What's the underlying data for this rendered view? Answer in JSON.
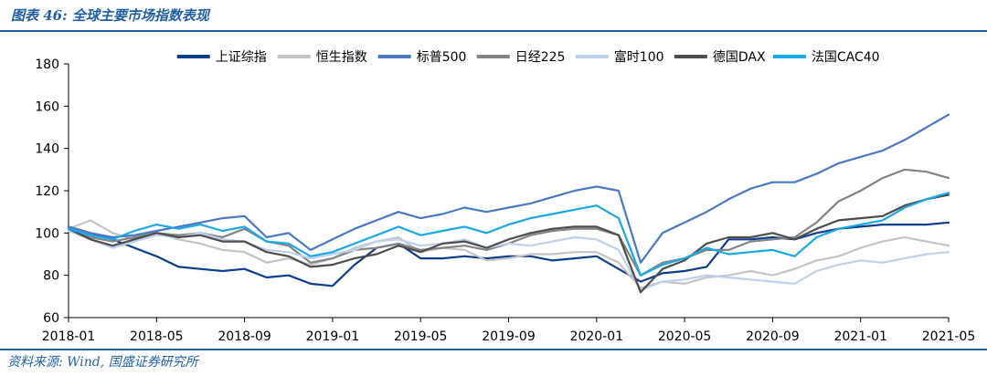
{
  "header": {
    "title": "图表 46:  全球主要市场指数表现"
  },
  "footer": {
    "source": "资料来源:  Wind,  国盛证券研究所"
  },
  "chart_data": {
    "type": "line",
    "title": "",
    "xlabel": "",
    "ylabel": "",
    "ylim": [
      60,
      180
    ],
    "yticks": [
      60,
      80,
      100,
      120,
      140,
      160,
      180
    ],
    "xticks": [
      "2018-01",
      "2018-05",
      "2018-09",
      "2019-01",
      "2019-05",
      "2019-09",
      "2020-01",
      "2020-05",
      "2020-09",
      "2021-01",
      "2021-05"
    ],
    "grid": false,
    "legend_position": "top",
    "x": [
      "2018-01",
      "2018-02",
      "2018-03",
      "2018-04",
      "2018-05",
      "2018-06",
      "2018-07",
      "2018-08",
      "2018-09",
      "2018-10",
      "2018-11",
      "2018-12",
      "2019-01",
      "2019-02",
      "2019-03",
      "2019-04",
      "2019-05",
      "2019-06",
      "2019-07",
      "2019-08",
      "2019-09",
      "2019-10",
      "2019-11",
      "2019-12",
      "2020-01",
      "2020-02",
      "2020-03",
      "2020-04",
      "2020-05",
      "2020-06",
      "2020-07",
      "2020-08",
      "2020-09",
      "2020-10",
      "2020-11",
      "2020-12",
      "2021-01",
      "2021-02",
      "2021-03",
      "2021-04",
      "2021-05"
    ],
    "series": [
      {
        "name": "上证综指",
        "color": "#0d3d8c",
        "values": [
          103,
          100,
          97,
          93,
          89,
          84,
          83,
          82,
          83,
          79,
          80,
          76,
          75,
          85,
          93,
          95,
          88,
          88,
          89,
          88,
          89,
          89,
          87,
          88,
          89,
          83,
          77,
          81,
          82,
          84,
          97,
          97,
          98,
          97,
          100,
          102,
          103,
          104,
          104,
          104,
          105
        ]
      },
      {
        "name": "恒生指数",
        "color": "#c4c4c4",
        "values": [
          102,
          106,
          100,
          97,
          100,
          97,
          95,
          92,
          91,
          86,
          88,
          85,
          88,
          93,
          96,
          98,
          91,
          93,
          92,
          87,
          88,
          90,
          90,
          91,
          91,
          86,
          74,
          77,
          76,
          79,
          80,
          82,
          80,
          83,
          87,
          89,
          93,
          96,
          98,
          96,
          94
        ]
      },
      {
        "name": "标普500",
        "color": "#4a78c4",
        "values": [
          103,
          100,
          98,
          99,
          101,
          103,
          105,
          107,
          108,
          98,
          100,
          92,
          97,
          102,
          106,
          110,
          107,
          109,
          112,
          110,
          112,
          114,
          117,
          120,
          122,
          120,
          86,
          100,
          105,
          110,
          116,
          121,
          124,
          124,
          128,
          133,
          136,
          139,
          144,
          150,
          156
        ]
      },
      {
        "name": "日经225",
        "color": "#838383",
        "values": [
          102,
          98,
          96,
          98,
          100,
          99,
          100,
          98,
          102,
          96,
          94,
          86,
          88,
          92,
          93,
          95,
          92,
          93,
          94,
          92,
          95,
          99,
          101,
          102,
          102,
          99,
          80,
          86,
          88,
          92,
          92,
          96,
          97,
          98,
          105,
          115,
          120,
          126,
          130,
          129,
          126
        ]
      },
      {
        "name": "富时100",
        "color": "#bdd1ec",
        "values": [
          101,
          97,
          93,
          96,
          99,
          98,
          100,
          97,
          96,
          92,
          91,
          88,
          90,
          92,
          96,
          97,
          94,
          95,
          97,
          93,
          95,
          94,
          96,
          98,
          97,
          92,
          73,
          77,
          78,
          80,
          79,
          78,
          77,
          76,
          82,
          85,
          87,
          86,
          88,
          90,
          91
        ]
      },
      {
        "name": "德国DAX",
        "color": "#4d4d4d",
        "values": [
          102,
          97,
          94,
          97,
          100,
          98,
          99,
          96,
          96,
          91,
          89,
          84,
          85,
          88,
          90,
          94,
          91,
          95,
          96,
          93,
          97,
          100,
          102,
          103,
          103,
          99,
          72,
          83,
          87,
          95,
          98,
          98,
          100,
          97,
          102,
          106,
          107,
          108,
          113,
          116,
          118
        ]
      },
      {
        "name": "法国CAC40",
        "color": "#1aa7e8",
        "values": [
          102,
          99,
          97,
          101,
          104,
          102,
          104,
          101,
          103,
          96,
          95,
          89,
          91,
          95,
          99,
          103,
          99,
          101,
          103,
          100,
          104,
          107,
          109,
          111,
          113,
          107,
          80,
          85,
          88,
          93,
          90,
          91,
          92,
          89,
          98,
          102,
          104,
          106,
          112,
          116,
          119
        ]
      }
    ]
  }
}
